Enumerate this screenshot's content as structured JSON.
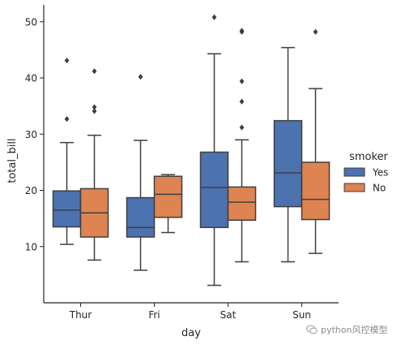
{
  "chart_data": {
    "type": "box",
    "xlabel": "day",
    "ylabel": "total_bill",
    "categories": [
      "Thur",
      "Fri",
      "Sat",
      "Sun"
    ],
    "ylim": [
      0,
      53
    ],
    "yticks": [
      10,
      20,
      30,
      40,
      50
    ],
    "legend": {
      "title": "smoker",
      "position": "right"
    },
    "series": [
      {
        "name": "Yes",
        "color": "#4c72b0",
        "boxes": [
          {
            "whisker_low": 10.4,
            "q1": 13.5,
            "median": 16.5,
            "q3": 19.9,
            "whisker_high": 28.5,
            "outliers": [
              32.7,
              43.1
            ]
          },
          {
            "whisker_low": 5.8,
            "q1": 11.7,
            "median": 13.4,
            "q3": 18.7,
            "whisker_high": 28.9,
            "outliers": [
              40.2
            ]
          },
          {
            "whisker_low": 3.1,
            "q1": 13.4,
            "median": 20.5,
            "q3": 26.8,
            "whisker_high": 44.3,
            "outliers": [
              50.8
            ]
          },
          {
            "whisker_low": 7.3,
            "q1": 17.1,
            "median": 23.1,
            "q3": 32.4,
            "whisker_high": 45.4,
            "outliers": []
          }
        ]
      },
      {
        "name": "No",
        "color": "#dd8452",
        "boxes": [
          {
            "whisker_low": 7.6,
            "q1": 11.7,
            "median": 16.0,
            "q3": 20.3,
            "whisker_high": 29.8,
            "outliers": [
              34.1,
              34.8,
              41.2
            ]
          },
          {
            "whisker_low": 12.5,
            "q1": 15.2,
            "median": 19.3,
            "q3": 22.5,
            "whisker_high": 22.8,
            "outliers": []
          },
          {
            "whisker_low": 7.3,
            "q1": 14.7,
            "median": 17.9,
            "q3": 20.6,
            "whisker_high": 29.0,
            "outliers": [
              31.2,
              35.8,
              39.4,
              48.2,
              48.4
            ]
          },
          {
            "whisker_low": 8.8,
            "q1": 14.8,
            "median": 18.4,
            "q3": 25.0,
            "whisker_high": 38.1,
            "outliers": [
              48.2
            ]
          }
        ]
      }
    ]
  },
  "watermark": {
    "text": "python风控模型",
    "icon": "wechat-icon"
  }
}
